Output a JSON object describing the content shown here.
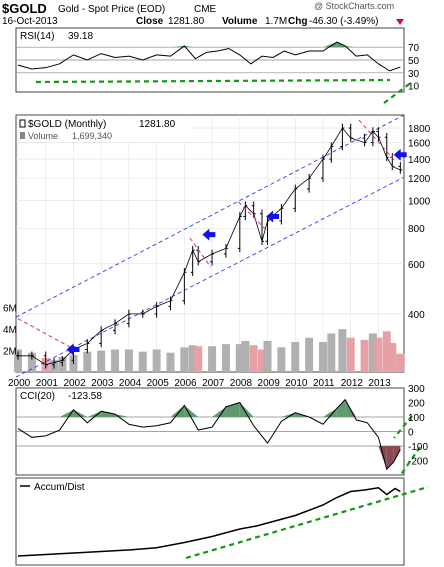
{
  "header": {
    "symbol": "$GOLD",
    "description": "Gold - Spot Price (EOD)",
    "exchange": "CME",
    "date": "16-Oct-2013",
    "close_label": "Close",
    "close_value": "1281.80",
    "volume_label": "Volume",
    "volume_value": "1.7M",
    "change_label": "Chg",
    "change_value": "-46.30 (-3.49%)",
    "watermark": "@ StockCharts.com"
  },
  "colors": {
    "price_bar": "#000000",
    "volume_up": "#b0b0b0",
    "volume_down": "#e6a0a6",
    "channel": "#3a3aee",
    "pink_line": "#cc3399",
    "arrow": "#1111ee",
    "green_trend": "#119911",
    "rsi_fill": "#5e9a6e",
    "cci_green": "#5e9a6e",
    "cci_red": "#8a4a52"
  },
  "chart_data": [
    {
      "type": "line",
      "panel": "RSI",
      "legend": "RSI(14)",
      "last_value": "39.18",
      "ylim": [
        0,
        100
      ],
      "yticks": [
        "70",
        "50",
        "30",
        "10"
      ],
      "ref_lines": [
        70,
        50,
        30
      ],
      "x": [
        2000.0,
        2000.5,
        2001.0,
        2001.5,
        2002.0,
        2002.5,
        2003.0,
        2003.5,
        2004.0,
        2004.5,
        2005.0,
        2005.5,
        2006.0,
        2006.4,
        2006.8,
        2007.2,
        2007.6,
        2008.0,
        2008.4,
        2008.8,
        2009.2,
        2009.6,
        2010.0,
        2010.5,
        2011.0,
        2011.5,
        2011.8,
        2012.2,
        2012.6,
        2013.0,
        2013.4,
        2013.79
      ],
      "values": [
        42,
        36,
        38,
        44,
        58,
        50,
        60,
        54,
        56,
        50,
        58,
        56,
        72,
        52,
        62,
        64,
        68,
        58,
        44,
        56,
        54,
        64,
        58,
        64,
        64,
        78,
        72,
        56,
        58,
        44,
        33,
        39
      ]
    },
    {
      "type": "ohlc",
      "panel": "Price",
      "legend": "$GOLD (Monthly)",
      "last_value": "1281.80",
      "volume_legend": "Volume",
      "volume_value": "1,699,340",
      "ylim": [
        250,
        2000
      ],
      "yticks": [
        "1800",
        "1600",
        "1400",
        "1200",
        "1000",
        "800",
        "600",
        "400"
      ],
      "volume_ticks": [
        "6M",
        "4M",
        "2M"
      ],
      "xticks": [
        "2000",
        "2001",
        "2002",
        "2003",
        "2004",
        "2005",
        "2006",
        "2007",
        "2008",
        "2009",
        "2010",
        "2011",
        "2012",
        "2013"
      ],
      "x": [
        2000.0,
        2000.5,
        2001.0,
        2001.3,
        2001.6,
        2002.0,
        2002.5,
        2003.0,
        2003.5,
        2004.0,
        2004.5,
        2005.0,
        2005.5,
        2006.0,
        2006.3,
        2006.5,
        2007.0,
        2007.5,
        2008.0,
        2008.2,
        2008.5,
        2008.8,
        2009.0,
        2009.5,
        2010.0,
        2010.5,
        2011.0,
        2011.3,
        2011.7,
        2012.0,
        2012.5,
        2012.8,
        2013.0,
        2013.3,
        2013.5,
        2013.79
      ],
      "values": [
        285,
        285,
        265,
        270,
        275,
        300,
        315,
        350,
        370,
        400,
        400,
        425,
        445,
        560,
        670,
        610,
        650,
        680,
        880,
        960,
        900,
        720,
        850,
        940,
        1100,
        1200,
        1400,
        1550,
        1800,
        1660,
        1600,
        1750,
        1670,
        1420,
        1320,
        1282
      ],
      "volumes_m": [
        2.1,
        1.8,
        1.3,
        1.1,
        1.4,
        1.6,
        1.9,
        2.0,
        2.1,
        2.1,
        1.9,
        2.1,
        1.8,
        2.3,
        2.5,
        2.4,
        2.4,
        2.6,
        2.6,
        2.9,
        2.5,
        2.1,
        2.9,
        2.3,
        2.8,
        3.2,
        2.8,
        3.6,
        4.0,
        3.2,
        3.0,
        3.6,
        3.2,
        3.8,
        2.7,
        1.7
      ]
    },
    {
      "type": "line",
      "panel": "CCI",
      "legend": "CCI(20)",
      "last_value": "-123.58",
      "ylim": [
        -300,
        300
      ],
      "yticks": [
        "300",
        "200",
        "100",
        "0",
        "-100",
        "-200"
      ],
      "ref_lines": [
        100,
        0,
        -100
      ],
      "x": [
        2000.0,
        2000.5,
        2001.0,
        2001.5,
        2002.0,
        2002.5,
        2003.0,
        2003.5,
        2004.0,
        2004.5,
        2005.0,
        2005.5,
        2006.0,
        2006.5,
        2007.0,
        2007.5,
        2008.0,
        2008.5,
        2009.0,
        2009.5,
        2010.0,
        2010.5,
        2011.0,
        2011.5,
        2011.8,
        2012.2,
        2012.6,
        2013.0,
        2013.3,
        2013.55,
        2013.79
      ],
      "values": [
        20,
        -40,
        -30,
        10,
        150,
        60,
        140,
        120,
        50,
        30,
        40,
        60,
        180,
        10,
        30,
        170,
        200,
        40,
        -80,
        70,
        130,
        100,
        50,
        160,
        220,
        80,
        60,
        -40,
        -260,
        -210,
        -124
      ]
    },
    {
      "type": "line",
      "panel": "Accum/Dist",
      "legend": "Accum/Dist",
      "ylim": [
        0,
        100
      ],
      "x": [
        2000.0,
        2001.0,
        2002.0,
        2003.0,
        2004.0,
        2005.0,
        2006.0,
        2006.5,
        2007.0,
        2008.0,
        2008.6,
        2009.0,
        2010.0,
        2011.0,
        2011.5,
        2012.0,
        2012.5,
        2013.0,
        2013.3,
        2013.6,
        2013.79
      ],
      "values": [
        4,
        6,
        8,
        10,
        12,
        15,
        22,
        26,
        30,
        40,
        44,
        48,
        58,
        72,
        82,
        90,
        92,
        95,
        86,
        94,
        90
      ]
    }
  ]
}
